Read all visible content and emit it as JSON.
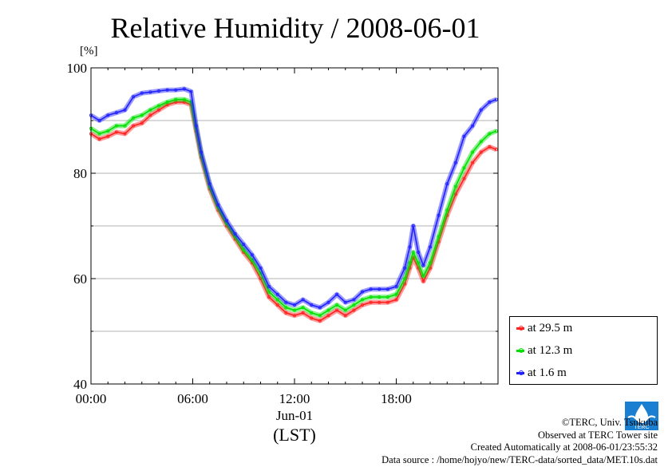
{
  "chart_data": {
    "type": "line",
    "title": "Relative Humidity / 2008-06-01",
    "ylabel": "[%]",
    "xlabel": "Jun-01",
    "xlabel2": "(LST)",
    "xlim": [
      0,
      24
    ],
    "ylim": [
      40,
      100
    ],
    "xticks": [
      {
        "value": 0,
        "label": "00:00"
      },
      {
        "value": 6,
        "label": "06:00"
      },
      {
        "value": 12,
        "label": "12:00"
      },
      {
        "value": 18,
        "label": "18:00"
      }
    ],
    "yticks": [
      {
        "value": 40,
        "label": "40"
      },
      {
        "value": 60,
        "label": "60"
      },
      {
        "value": 80,
        "label": "80"
      },
      {
        "value": 100,
        "label": "100"
      }
    ],
    "grid": true,
    "legend_position": "bottom-right outside",
    "series": [
      {
        "name": "at 29.5 m",
        "color": "#ff2020",
        "x": [
          0,
          0.5,
          1,
          1.5,
          2,
          2.5,
          3,
          3.5,
          4,
          4.5,
          5,
          5.5,
          5.9,
          6.2,
          6.5,
          7,
          7.5,
          8,
          8.5,
          9,
          9.5,
          10,
          10.5,
          11,
          11.5,
          12,
          12.5,
          13,
          13.5,
          14,
          14.5,
          15,
          15.5,
          16,
          16.5,
          17,
          17.5,
          18,
          18.5,
          18.8,
          19,
          19.3,
          19.6,
          20,
          20.5,
          21,
          21.5,
          22,
          22.5,
          23,
          23.5,
          23.9
        ],
        "y": [
          87.5,
          86.5,
          87,
          87.8,
          87.5,
          89,
          89.5,
          91,
          92,
          93,
          93.5,
          93.5,
          93,
          88,
          83,
          77,
          73,
          70,
          67.5,
          65,
          63,
          60,
          56.5,
          55,
          53.5,
          53,
          53.5,
          52.5,
          52,
          53,
          54,
          53,
          54,
          55,
          55.5,
          55.5,
          55.5,
          56,
          59,
          62,
          64,
          62,
          59.5,
          62,
          67,
          72,
          76,
          79,
          82,
          84,
          85,
          84.5
        ]
      },
      {
        "name": "at 12.3 m",
        "color": "#00e000",
        "x": [
          0,
          0.5,
          1,
          1.5,
          2,
          2.5,
          3,
          3.5,
          4,
          4.5,
          5,
          5.5,
          5.9,
          6.2,
          6.5,
          7,
          7.5,
          8,
          8.5,
          9,
          9.5,
          10,
          10.5,
          11,
          11.5,
          12,
          12.5,
          13,
          13.5,
          14,
          14.5,
          15,
          15.5,
          16,
          16.5,
          17,
          17.5,
          18,
          18.5,
          18.8,
          19,
          19.3,
          19.6,
          20,
          20.5,
          21,
          21.5,
          22,
          22.5,
          23,
          23.5,
          23.9
        ],
        "y": [
          88.5,
          87.5,
          88,
          89,
          89,
          90.5,
          91,
          92,
          92.8,
          93.5,
          94,
          94,
          93.5,
          88.5,
          83.5,
          77.5,
          73.5,
          70.5,
          68,
          65.5,
          63.5,
          61,
          57.5,
          56,
          54.5,
          54,
          54.5,
          53.5,
          53,
          54,
          55,
          54,
          55,
          56,
          56.5,
          56.5,
          56.5,
          57,
          60,
          63,
          65,
          63,
          60.5,
          63,
          68,
          73,
          77.5,
          81,
          84,
          86,
          87.5,
          88
        ]
      },
      {
        "name": "at 1.6 m",
        "color": "#2020ff",
        "x": [
          0,
          0.5,
          1,
          1.5,
          2,
          2.5,
          3,
          3.5,
          4,
          4.5,
          5,
          5.5,
          5.9,
          6.2,
          6.5,
          7,
          7.5,
          8,
          8.5,
          9,
          9.5,
          10,
          10.5,
          11,
          11.5,
          12,
          12.5,
          13,
          13.5,
          14,
          14.5,
          15,
          15.5,
          16,
          16.5,
          17,
          17.5,
          18,
          18.5,
          18.8,
          19,
          19.3,
          19.6,
          20,
          20.5,
          21,
          21.5,
          22,
          22.5,
          23,
          23.5,
          23.9
        ],
        "y": [
          91,
          90,
          91,
          91.5,
          92,
          94.5,
          95.2,
          95.4,
          95.6,
          95.8,
          95.8,
          96,
          95.5,
          89,
          84,
          78,
          74,
          71,
          68.5,
          66.5,
          64.5,
          62,
          58.5,
          57,
          55.5,
          55,
          56,
          55,
          54.5,
          55.5,
          57,
          55.5,
          56,
          57.5,
          58,
          58,
          58,
          58.5,
          62,
          66,
          70,
          65,
          62.5,
          66,
          72,
          78,
          82,
          87,
          89,
          92,
          93.5,
          94
        ]
      }
    ]
  },
  "credits": {
    "line1": "©TERC, Univ. Tsukuba",
    "line2": "Observed at TERC Tower site",
    "line3": "Created Automatically at 2008-06-01/23:55:32",
    "line4": "Data source : /home/hojyo/new/TERC-data/sorted_data/MET.10s.dat"
  },
  "logo": {
    "text": "TERC",
    "color": "#1a7fd0"
  }
}
